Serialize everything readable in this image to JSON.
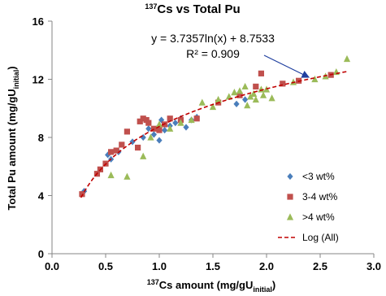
{
  "chart_data": {
    "type": "scatter",
    "title": {
      "sup": "137",
      "text": "Cs vs Total Pu"
    },
    "x_label": {
      "sup": "137",
      "text": "Cs amount (mg/gU",
      "sub": "initial",
      "end": ")"
    },
    "y_label": {
      "text": "Total Pu  amount (mg/gU",
      "sub": "initial",
      "end": ")"
    },
    "annotations": [
      "y = 3.7357ln(x) + 8.7533",
      "R² = 0.909"
    ],
    "xlim": [
      0,
      3
    ],
    "ylim": [
      0,
      16
    ],
    "xticks": [
      {
        "value": 0,
        "label": "0.0"
      },
      0.5,
      {
        "value": 1,
        "label": "1.0"
      },
      1.5,
      {
        "value": 2,
        "label": "2.0"
      },
      2.5,
      {
        "value": 3,
        "label": "3.0"
      }
    ],
    "yticks": [
      0,
      4,
      8,
      12,
      16
    ],
    "legend": "lower-right",
    "series": [
      {
        "name": "<3 wt%",
        "color": "#4a7ebb",
        "marker": "diamond",
        "x": [
          0.3,
          0.52,
          0.55,
          0.62,
          0.75,
          0.85,
          0.9,
          0.95,
          1.0,
          1.0,
          1.02,
          1.05,
          1.1,
          1.15,
          1.2,
          1.25,
          1.3,
          1.35,
          1.72,
          1.8
        ],
        "values": [
          4.3,
          6.8,
          6.5,
          7.0,
          7.7,
          8.0,
          8.6,
          8.2,
          8.8,
          7.8,
          9.2,
          8.5,
          8.8,
          9.0,
          9.3,
          8.7,
          9.2,
          9.4,
          10.3,
          10.6
        ]
      },
      {
        "name": "3-4 wt%",
        "color": "#c0504d",
        "marker": "square",
        "x": [
          0.28,
          0.42,
          0.45,
          0.5,
          0.55,
          0.6,
          0.65,
          0.7,
          0.8,
          0.82,
          0.85,
          0.88,
          0.9,
          0.95,
          1.0,
          1.05,
          1.1,
          1.2,
          1.35,
          1.55,
          1.75,
          1.9,
          1.95,
          2.15,
          2.3,
          2.6
        ],
        "values": [
          4.1,
          5.5,
          5.8,
          6.2,
          7.0,
          7.1,
          7.5,
          8.4,
          7.3,
          9.1,
          9.3,
          9.2,
          9.0,
          8.6,
          8.5,
          8.9,
          9.3,
          9.2,
          9.3,
          10.4,
          10.9,
          11.5,
          12.4,
          11.7,
          11.9,
          12.3
        ]
      },
      {
        "name": ">4 wt%",
        "color": "#9bbb59",
        "marker": "triangle",
        "x": [
          0.55,
          0.7,
          0.85,
          0.92,
          1.0,
          1.1,
          1.2,
          1.3,
          1.4,
          1.5,
          1.55,
          1.65,
          1.7,
          1.75,
          1.8,
          1.82,
          1.85,
          1.88,
          1.9,
          1.95,
          1.97,
          2.0,
          2.05,
          2.25,
          2.45,
          2.55,
          2.65,
          2.75
        ],
        "values": [
          5.4,
          5.3,
          6.7,
          8.0,
          8.9,
          8.6,
          9.0,
          9.2,
          10.4,
          10.1,
          10.6,
          10.8,
          11.1,
          11.2,
          11.5,
          10.2,
          10.8,
          11.0,
          10.6,
          11.3,
          10.9,
          11.3,
          10.7,
          11.8,
          12.0,
          12.2,
          12.5,
          13.4
        ]
      }
    ],
    "trendline": {
      "name": "Log (All)",
      "kind": "log",
      "a": 3.7357,
      "b": 8.7533,
      "xrange": [
        0.27,
        2.75
      ],
      "color": "#c00000"
    }
  }
}
